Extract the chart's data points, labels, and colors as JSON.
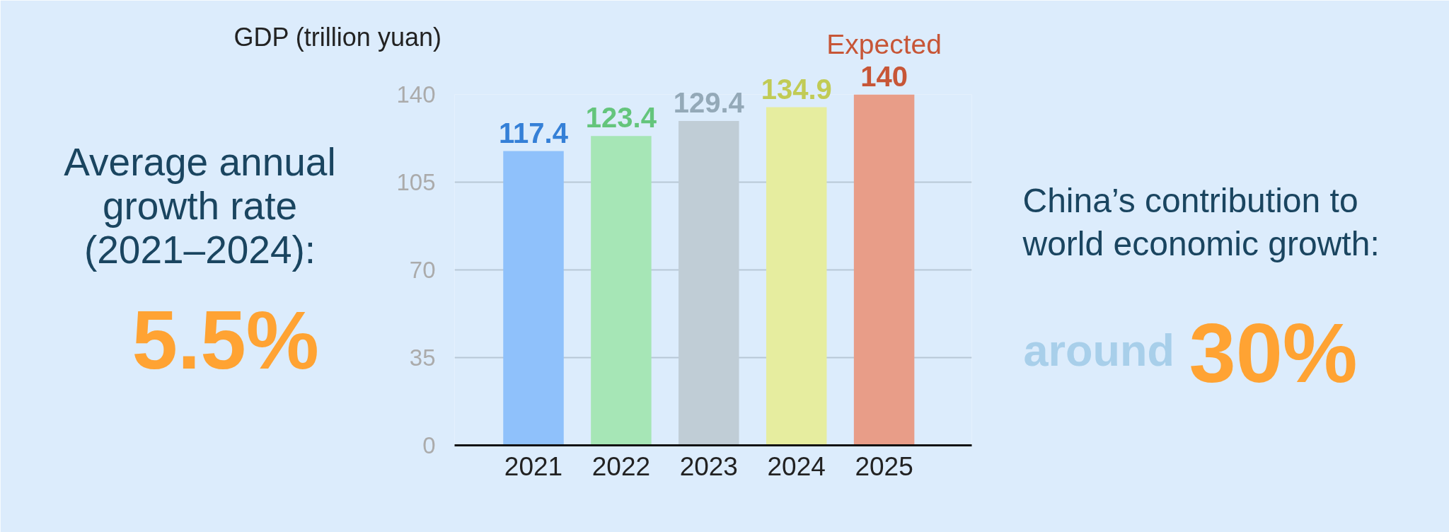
{
  "chart_data": {
    "type": "bar",
    "ylabel": "GDP (trillion yuan)",
    "categories": [
      "2021",
      "2022",
      "2023",
      "2024",
      "2025"
    ],
    "values": [
      117.4,
      123.4,
      129.4,
      134.9,
      140
    ],
    "colors": [
      "#8fc1fb",
      "#a6e6b6",
      "#c0cdd6",
      "#e6ed9f",
      "#e89d88"
    ],
    "ylim": [
      0,
      140
    ],
    "yticks": [
      0,
      35,
      70,
      105,
      140
    ],
    "grid": "y",
    "data_labels": true,
    "annotations": [
      "Average annual growth rate (2021–2024):",
      "5.5%",
      "China’s contribution to world economic growth:",
      "around",
      "30%",
      {
        "text": "Expected",
        "x": "2025",
        "y": 140
      }
    ]
  }
}
